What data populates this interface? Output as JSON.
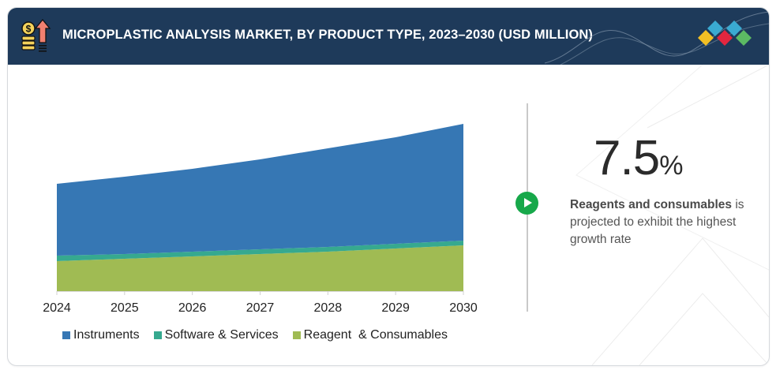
{
  "header": {
    "title": "MICROPLASTIC ANALYSIS MARKET, BY PRODUCT TYPE, 2023–2030 (USD MILLION)",
    "icon": "coins-growth-icon",
    "logo": "diamond-logo-icon",
    "logo_colors": [
      "#f2bf24",
      "#3aaad1",
      "#e3263f",
      "#3aaad1",
      "#5cba63"
    ]
  },
  "colors": {
    "header_bg": "#1e3a5a",
    "instruments": "#3677b4",
    "software_services": "#36a98f",
    "reagent_consumables": "#a0bb53",
    "accent_green": "#17a84a"
  },
  "chart_data": {
    "type": "area",
    "stacked": true,
    "title": "MICROPLASTIC ANALYSIS MARKET, BY PRODUCT TYPE, 2023–2030 (USD MILLION)",
    "xlabel": "",
    "ylabel": "",
    "y_axis_shown": false,
    "units_note": "relative index values (no y-axis labels shown)",
    "categories": [
      "2024",
      "2025",
      "2026",
      "2027",
      "2028",
      "2029",
      "2030"
    ],
    "series": [
      {
        "name": "Reagent  & Consumables",
        "key": "reagent_consumables",
        "values": [
          38,
          41,
          44,
          47,
          50,
          54,
          58
        ]
      },
      {
        "name": "Software & Services",
        "key": "software_services",
        "values": [
          7,
          6,
          6,
          6,
          6,
          6,
          6
        ]
      },
      {
        "name": "Instruments",
        "key": "instruments",
        "values": [
          91,
          98,
          105,
          114,
          125,
          135,
          148
        ]
      }
    ],
    "ylim": [
      0,
      212
    ],
    "grid": false,
    "legend_position": "bottom",
    "legend_order": [
      "Instruments",
      "Software & Services",
      "Reagent  & Consumables"
    ]
  },
  "legend": [
    {
      "label": "Instruments",
      "color_key": "instruments"
    },
    {
      "label": "Software & Services",
      "color_key": "software_services"
    },
    {
      "label": "Reagent  & Consumables",
      "color_key": "reagent_consumables"
    }
  ],
  "highlight": {
    "value": "7.5",
    "unit": "%",
    "bold_text": "Reagents and consumables",
    "rest_text": " is projected to exhibit the highest growth rate",
    "button_icon": "play-icon"
  }
}
